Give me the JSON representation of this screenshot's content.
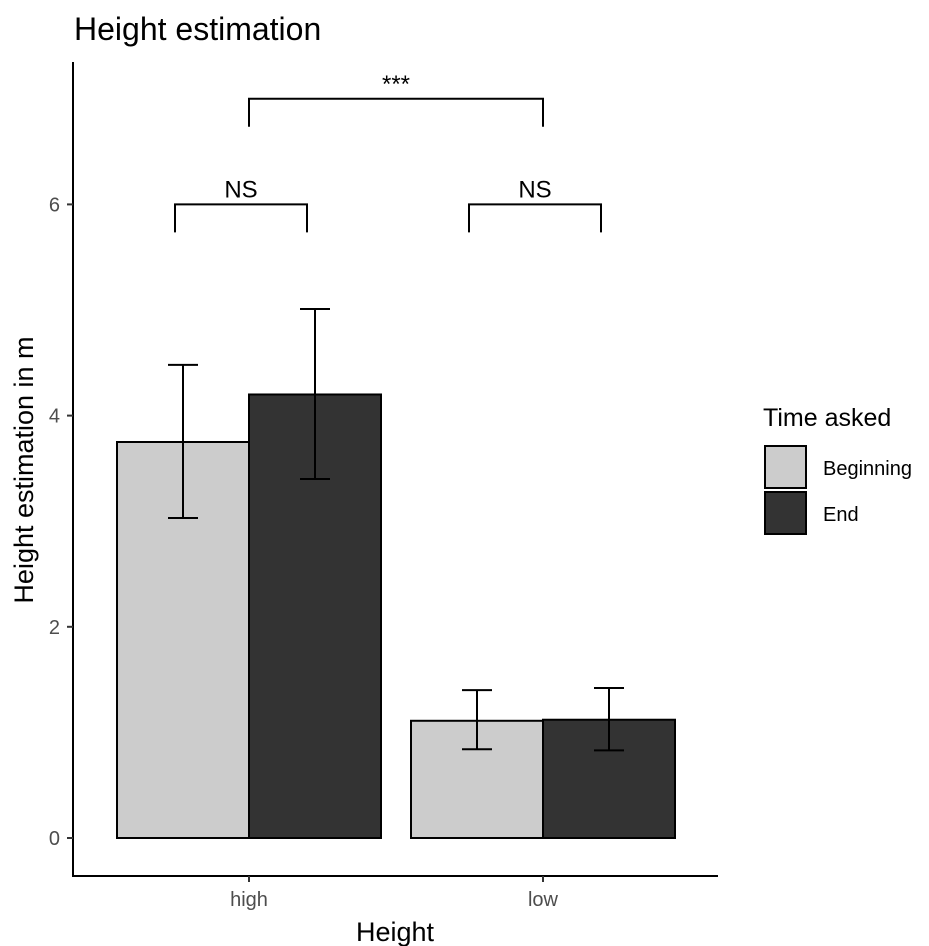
{
  "chart_data": {
    "type": "bar",
    "title": "Height estimation",
    "xlabel": "Height",
    "ylabel": "Height estimation in m",
    "categories": [
      "high",
      "low"
    ],
    "ylim": [
      -0.55,
      7.35
    ],
    "yticks": [
      0,
      2,
      4,
      6
    ],
    "yticklabels": [
      "0",
      "2",
      "4",
      "6"
    ],
    "grid": false,
    "legend": {
      "title": "Time asked",
      "position": "right"
    },
    "series": [
      {
        "name": "Beginning",
        "color": "#cccccc",
        "values": [
          3.75,
          1.11
        ],
        "err_low": [
          3.03,
          0.84
        ],
        "err_high": [
          4.48,
          1.4
        ]
      },
      {
        "name": "End",
        "color": "#333333",
        "values": [
          4.2,
          1.12
        ],
        "err_low": [
          3.4,
          0.83
        ],
        "err_high": [
          5.01,
          1.42
        ]
      }
    ],
    "significance": [
      {
        "label": "NS",
        "from": "high:Beginning",
        "to": "high:End",
        "y": 6.0
      },
      {
        "label": "NS",
        "from": "low:Beginning",
        "to": "low:End",
        "y": 6.0
      },
      {
        "label": "***",
        "from": "high",
        "to": "low",
        "y": 7.0
      }
    ]
  }
}
